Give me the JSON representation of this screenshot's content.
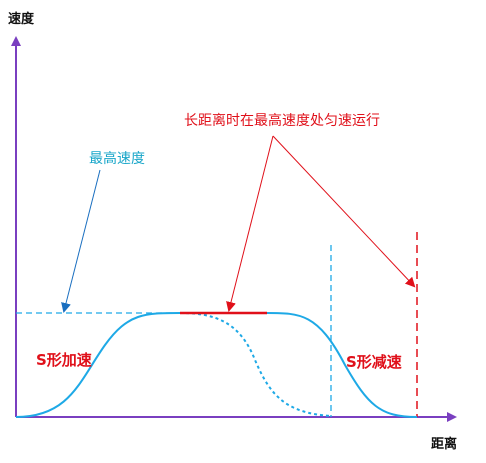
{
  "labels": {
    "y_axis": "速度",
    "x_axis": "距离",
    "max_speed": "最高速度",
    "cruise_note": "长距离时在最高速度处匀速运行",
    "s_accel": "S形加速",
    "s_decel": "S形减速"
  },
  "colors": {
    "axis": "#7a3fc0",
    "curve": "#1ea9e6",
    "annotation_red": "#e0101a",
    "annotation_blue": "#19a6c9"
  }
}
